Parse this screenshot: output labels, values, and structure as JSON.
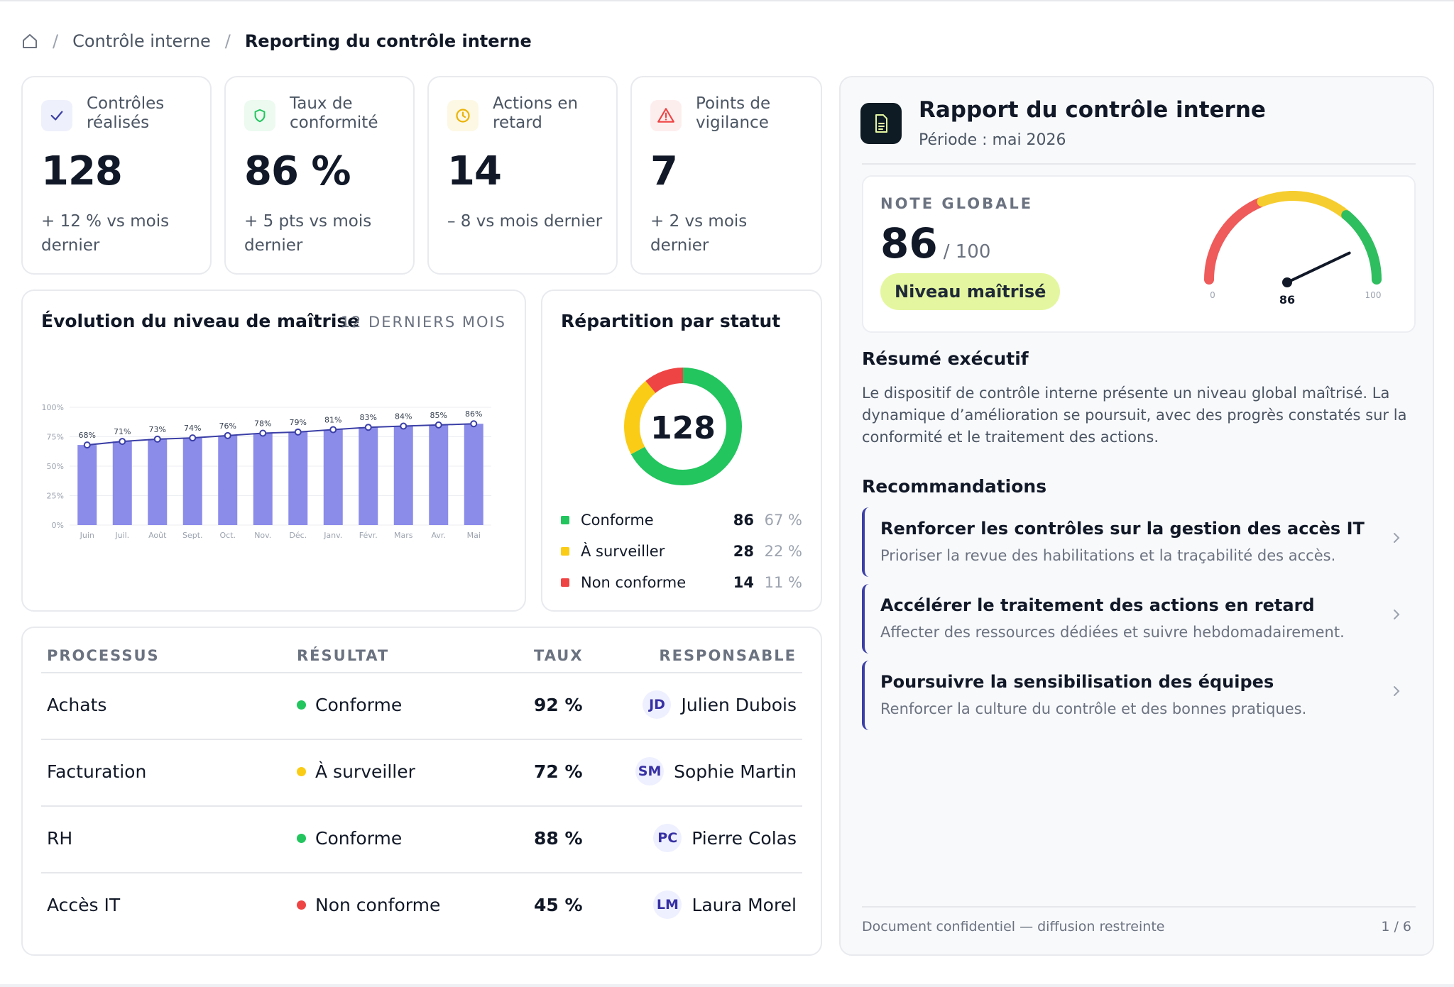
{
  "breadcrumb": {
    "home_icon": "home-icon",
    "separator": "/",
    "parent": "Contrôle interne",
    "current": "Reporting du contrôle interne"
  },
  "kpis": [
    {
      "icon": "check-icon",
      "label": "Contrôles réalisés",
      "value": "128",
      "delta": "+ 12 % vs mois dernier",
      "accent": "#3b3fa6",
      "bg": "#eef0fb"
    },
    {
      "icon": "shield-icon",
      "label": "Taux de conformité",
      "value": "86 %",
      "delta": "+ 5 pts vs mois dernier",
      "accent": "#22c55e",
      "bg": "#ecfaf0"
    },
    {
      "icon": "clock-icon",
      "label": "Actions en retard",
      "value": "14",
      "delta": "– 8 vs mois dernier",
      "accent": "#eab308",
      "bg": "#fdf8e4"
    },
    {
      "icon": "warning-icon",
      "label": "Points de vigilance",
      "value": "7",
      "delta": "+ 2 vs mois dernier",
      "accent": "#ef4444",
      "bg": "#fdeeee"
    }
  ],
  "evolution": {
    "title": "Évolution du niveau de maîtrise",
    "period_tag": "12 DERNIERS MOIS"
  },
  "chart_data": {
    "type": "bar",
    "title": "Évolution du niveau de maîtrise",
    "categories": [
      "Juin",
      "Juil.",
      "Août",
      "Sept.",
      "Oct.",
      "Nov.",
      "Déc.",
      "Janv.",
      "Févr.",
      "Mars",
      "Avr.",
      "Mai"
    ],
    "values": [
      68,
      71,
      73,
      74,
      76,
      78,
      79,
      81,
      83,
      84,
      85,
      86
    ],
    "value_labels": [
      "68%",
      "71%",
      "73%",
      "74%",
      "76%",
      "78%",
      "79%",
      "81%",
      "83%",
      "84%",
      "85%",
      "86%"
    ],
    "y_ticks": [
      "0%",
      "25%",
      "50%",
      "75%",
      "100%"
    ],
    "ylim": [
      0,
      100
    ],
    "grid": true,
    "bar_color": "#8b8bea",
    "line_color": "#3b3fa6"
  },
  "status": {
    "title": "Répartition par statut",
    "total": "128",
    "items": [
      {
        "label": "Conforme",
        "count": "86",
        "pct": "67 %",
        "color": "#22c55e",
        "value": 86
      },
      {
        "label": "À surveiller",
        "count": "28",
        "pct": "22 %",
        "color": "#facc15",
        "value": 28
      },
      {
        "label": "Non conforme",
        "count": "14",
        "pct": "11 %",
        "color": "#ef4444",
        "value": 14
      }
    ]
  },
  "table": {
    "headers": {
      "process": "PROCESSUS",
      "result": "RÉSULTAT",
      "rate": "TAUX",
      "owner": "RESPONSABLE"
    },
    "rows": [
      {
        "process": "Achats",
        "result": "Conforme",
        "result_color": "#22c55e",
        "rate": "92 %",
        "initials": "JD",
        "owner": "Julien Dubois"
      },
      {
        "process": "Facturation",
        "result": "À surveiller",
        "result_color": "#facc15",
        "rate": "72 %",
        "initials": "SM",
        "owner": "Sophie Martin"
      },
      {
        "process": "RH",
        "result": "Conforme",
        "result_color": "#22c55e",
        "rate": "88 %",
        "initials": "PC",
        "owner": "Pierre Colas"
      },
      {
        "process": "Accès IT",
        "result": "Non conforme",
        "result_color": "#ef4444",
        "rate": "45 %",
        "initials": "LM",
        "owner": "Laura Morel"
      }
    ]
  },
  "report": {
    "icon": "document-icon",
    "title": "Rapport du contrôle interne",
    "period": "Période : mai 2026",
    "score_label": "NOTE GLOBALE",
    "score": "86",
    "score_max": "/ 100",
    "level": "Niveau maîtrisé",
    "gauge": {
      "value": 86,
      "min_label": "0",
      "max_label": "100",
      "value_label": "86"
    },
    "summary_title": "Résumé exécutif",
    "summary_text": "Le dispositif de contrôle interne présente un niveau global maîtrisé. La dynamique d’amélioration se poursuit, avec des progrès constatés sur la conformité et le traitement des actions.",
    "recos_title": "Recommandations",
    "recos": [
      {
        "title": "Renforcer les contrôles sur la gestion des accès IT",
        "sub": "Prioriser la revue des habilitations et la traçabilité des accès."
      },
      {
        "title": "Accélérer le traitement des actions en retard",
        "sub": "Affecter des ressources dédiées et suivre hebdomadairement."
      },
      {
        "title": "Poursuivre la sensibilisation des équipes",
        "sub": "Renforcer la culture du contrôle et des bonnes pratiques."
      }
    ],
    "footer_left": "Document confidentiel — diffusion restreinte",
    "footer_right": "1 / 6"
  }
}
